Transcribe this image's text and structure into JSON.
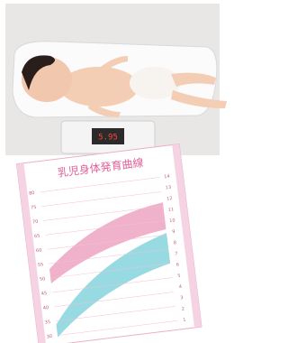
{
  "photo": {
    "scale_display": "5.95"
  },
  "growth_chart": {
    "title": "乳児身体発育曲線",
    "left_labels": [
      "80",
      "75",
      "70",
      "65",
      "60",
      "55",
      "50",
      "45",
      "40",
      "35",
      "30"
    ],
    "right_labels": [
      "14",
      "13",
      "12",
      "11",
      "10",
      "9",
      "8",
      "7",
      "6",
      "5",
      "4",
      "3",
      "2",
      "1"
    ]
  }
}
